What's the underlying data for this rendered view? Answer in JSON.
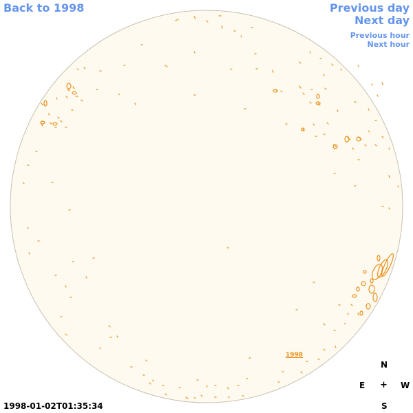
{
  "nav": {
    "back_label": "Back to 1998",
    "prev_day_label": "Previous day",
    "next_day_label": "Next day",
    "prev_hour_label": "Previous hour",
    "next_hour_label": "Next hour"
  },
  "compass": {
    "north": "N",
    "east": "E",
    "center": "+",
    "west": "W",
    "south": "S"
  },
  "timestamp": "1998-01-02T01:35:34",
  "year_label": "1998",
  "colors": {
    "link": "#6495ed",
    "disk_fill": "#fffaf0",
    "disk_border": "#c8c0b0",
    "contour": "#e8901a"
  }
}
